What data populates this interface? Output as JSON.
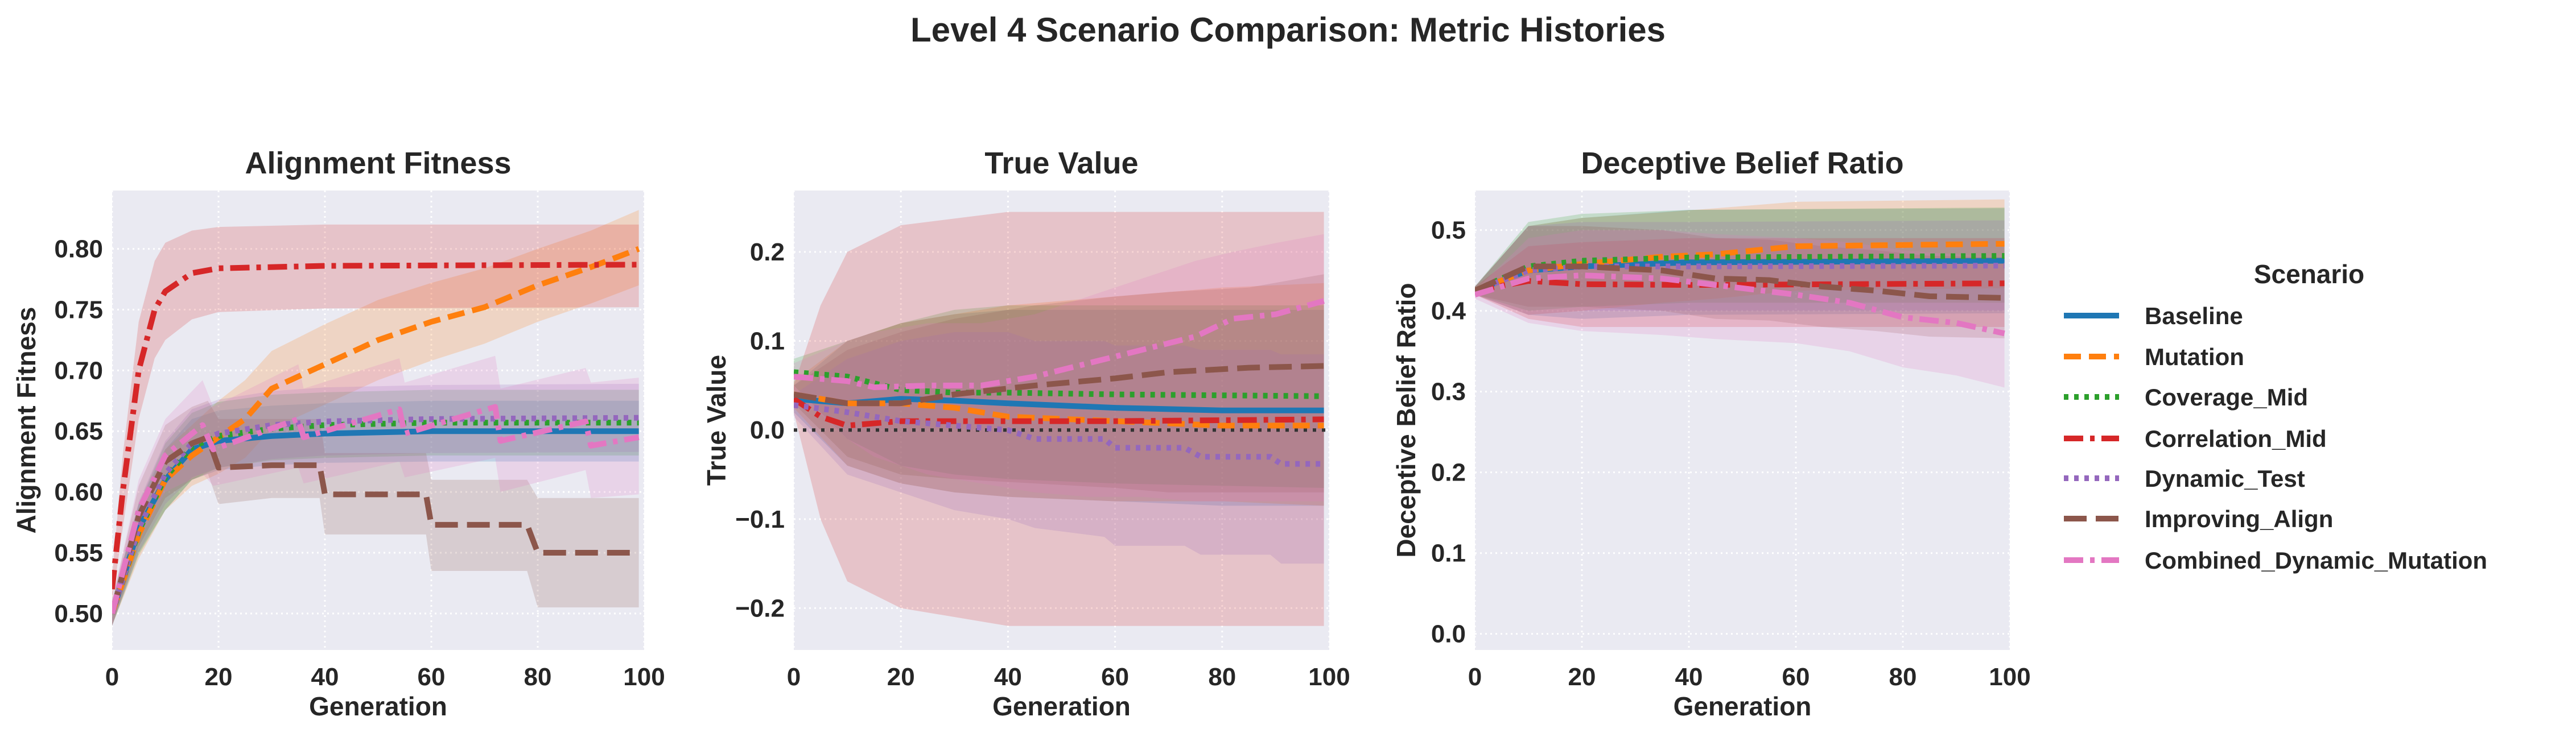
{
  "suptitle": "Level 4 Scenario Comparison: Metric Histories",
  "legend": {
    "title": "Scenario",
    "placement": "right, outside"
  },
  "colors": {
    "Baseline": "#1f77b4",
    "Mutation": "#ff7f0e",
    "Coverage_Mid": "#2ca02c",
    "Correlation_Mid": "#d62728",
    "Dynamic_Test": "#9467bd",
    "Improving_Align": "#8c564b",
    "Combined_Dynamic_Mutation": "#e377c2",
    "background": "#eaeaf2"
  },
  "chart_data": [
    {
      "type": "line",
      "title": "Alignment Fitness",
      "xlabel": "Generation",
      "ylabel": "Alignment Fitness",
      "xlim": [
        0,
        100
      ],
      "ylim": [
        0.47,
        0.848
      ],
      "xticks": [
        "0",
        "20",
        "40",
        "60",
        "80",
        "100"
      ],
      "yticks": [
        "0.50",
        "0.55",
        "0.60",
        "0.65",
        "0.70",
        "0.75",
        "0.80"
      ],
      "grid": true,
      "series": [
        {
          "name": "Baseline",
          "style": "solid",
          "x": [
            0,
            5,
            10,
            15,
            20,
            30,
            40,
            60,
            99
          ],
          "y": [
            0.5,
            0.57,
            0.61,
            0.635,
            0.642,
            0.646,
            0.648,
            0.65,
            0.65
          ],
          "lower": [
            0.49,
            0.55,
            0.585,
            0.61,
            0.618,
            0.622,
            0.624,
            0.625,
            0.625
          ],
          "upper": [
            0.51,
            0.59,
            0.635,
            0.66,
            0.667,
            0.671,
            0.673,
            0.675,
            0.675
          ]
        },
        {
          "name": "Mutation",
          "style": "dashed",
          "x": [
            0,
            5,
            10,
            15,
            20,
            25,
            30,
            40,
            50,
            60,
            70,
            80,
            90,
            99
          ],
          "y": [
            0.5,
            0.565,
            0.61,
            0.63,
            0.645,
            0.66,
            0.685,
            0.705,
            0.725,
            0.74,
            0.752,
            0.77,
            0.785,
            0.8
          ],
          "lower": [
            0.49,
            0.545,
            0.585,
            0.605,
            0.615,
            0.628,
            0.652,
            0.672,
            0.692,
            0.708,
            0.722,
            0.74,
            0.755,
            0.77
          ],
          "upper": [
            0.51,
            0.585,
            0.635,
            0.655,
            0.675,
            0.692,
            0.716,
            0.738,
            0.758,
            0.772,
            0.784,
            0.8,
            0.815,
            0.832
          ]
        },
        {
          "name": "Coverage_Mid",
          "style": "dotted",
          "x": [
            0,
            5,
            10,
            15,
            20,
            30,
            40,
            60,
            99
          ],
          "y": [
            0.5,
            0.568,
            0.612,
            0.637,
            0.646,
            0.652,
            0.655,
            0.657,
            0.657
          ],
          "lower": [
            0.49,
            0.548,
            0.585,
            0.61,
            0.62,
            0.626,
            0.628,
            0.63,
            0.63
          ],
          "upper": [
            0.51,
            0.59,
            0.64,
            0.665,
            0.674,
            0.68,
            0.682,
            0.684,
            0.684
          ]
        },
        {
          "name": "Correlation_Mid",
          "style": "dashdot",
          "x": [
            0,
            2,
            5,
            8,
            10,
            15,
            20,
            40,
            99
          ],
          "y": [
            0.52,
            0.6,
            0.7,
            0.75,
            0.765,
            0.78,
            0.784,
            0.786,
            0.787
          ],
          "lower": [
            0.51,
            0.57,
            0.66,
            0.71,
            0.725,
            0.742,
            0.748,
            0.751,
            0.752
          ],
          "upper": [
            0.53,
            0.63,
            0.74,
            0.79,
            0.805,
            0.815,
            0.818,
            0.82,
            0.82
          ]
        },
        {
          "name": "Dynamic_Test",
          "style": "dotted",
          "x": [
            0,
            5,
            10,
            15,
            20,
            30,
            40,
            60,
            99
          ],
          "y": [
            0.5,
            0.57,
            0.615,
            0.64,
            0.648,
            0.655,
            0.658,
            0.66,
            0.661
          ],
          "lower": [
            0.49,
            0.55,
            0.59,
            0.612,
            0.62,
            0.627,
            0.63,
            0.632,
            0.633
          ],
          "upper": [
            0.51,
            0.592,
            0.642,
            0.668,
            0.676,
            0.683,
            0.686,
            0.688,
            0.689
          ]
        },
        {
          "name": "Improving_Align",
          "style": "longdash",
          "x": [
            0,
            5,
            10,
            15,
            18,
            20,
            30,
            39,
            40,
            59,
            60,
            78,
            80,
            99
          ],
          "y": [
            0.5,
            0.58,
            0.625,
            0.64,
            0.645,
            0.62,
            0.622,
            0.622,
            0.598,
            0.598,
            0.573,
            0.573,
            0.55,
            0.55
          ],
          "lower": [
            0.49,
            0.555,
            0.595,
            0.61,
            0.615,
            0.59,
            0.595,
            0.595,
            0.565,
            0.565,
            0.535,
            0.535,
            0.505,
            0.505
          ],
          "upper": [
            0.51,
            0.605,
            0.655,
            0.67,
            0.675,
            0.66,
            0.66,
            0.66,
            0.632,
            0.632,
            0.61,
            0.61,
            0.595,
            0.595
          ]
        },
        {
          "name": "Combined_Dynamic_Mutation",
          "style": "dashdot",
          "x": [
            0,
            5,
            10,
            17,
            19,
            35,
            36,
            54,
            55,
            72,
            73,
            89,
            90,
            99
          ],
          "y": [
            0.5,
            0.585,
            0.63,
            0.655,
            0.635,
            0.66,
            0.645,
            0.668,
            0.648,
            0.67,
            0.642,
            0.658,
            0.638,
            0.645
          ],
          "lower": [
            0.49,
            0.56,
            0.6,
            0.615,
            0.605,
            0.62,
            0.607,
            0.625,
            0.612,
            0.628,
            0.6,
            0.618,
            0.595,
            0.598
          ],
          "upper": [
            0.51,
            0.61,
            0.66,
            0.692,
            0.67,
            0.705,
            0.685,
            0.71,
            0.69,
            0.712,
            0.685,
            0.702,
            0.69,
            0.694
          ]
        }
      ]
    },
    {
      "type": "line",
      "title": "True Value",
      "xlabel": "Generation",
      "ylabel": "True Value",
      "xlim": [
        0,
        100
      ],
      "ylim": [
        -0.247,
        0.269
      ],
      "xticks": [
        "0",
        "20",
        "40",
        "60",
        "80",
        "100"
      ],
      "yticks": [
        "−0.2",
        "−0.1",
        "0.0",
        "0.1",
        "0.2"
      ],
      "grid": true,
      "reference_line": 0.0,
      "series": [
        {
          "name": "Baseline",
          "style": "solid",
          "x": [
            0,
            10,
            20,
            30,
            40,
            60,
            80,
            99
          ],
          "y": [
            0.035,
            0.03,
            0.035,
            0.033,
            0.03,
            0.025,
            0.022,
            0.022
          ],
          "lower": [
            0.02,
            -0.04,
            -0.06,
            -0.07,
            -0.075,
            -0.08,
            -0.085,
            -0.085
          ],
          "upper": [
            0.05,
            0.1,
            0.12,
            0.13,
            0.135,
            0.135,
            0.135,
            0.135
          ]
        },
        {
          "name": "Mutation",
          "style": "dashed",
          "x": [
            0,
            10,
            20,
            30,
            40,
            60,
            80,
            99
          ],
          "y": [
            0.04,
            0.03,
            0.03,
            0.025,
            0.015,
            0.01,
            0.005,
            0.005
          ],
          "lower": [
            0.025,
            -0.04,
            -0.06,
            -0.07,
            -0.075,
            -0.08,
            -0.08,
            -0.085
          ],
          "upper": [
            0.055,
            0.1,
            0.12,
            0.13,
            0.14,
            0.15,
            0.16,
            0.165
          ]
        },
        {
          "name": "Coverage_Mid",
          "style": "dotted",
          "x": [
            0,
            10,
            20,
            30,
            40,
            60,
            99
          ],
          "y": [
            0.065,
            0.06,
            0.045,
            0.042,
            0.042,
            0.04,
            0.038
          ],
          "lower": [
            0.05,
            -0.01,
            -0.04,
            -0.05,
            -0.055,
            -0.06,
            -0.065
          ],
          "upper": [
            0.08,
            0.1,
            0.12,
            0.135,
            0.14,
            0.14,
            0.14
          ]
        },
        {
          "name": "Correlation_Mid",
          "style": "dashdot",
          "x": [
            0,
            5,
            10,
            20,
            40,
            60,
            99
          ],
          "y": [
            0.035,
            0.015,
            0.005,
            0.01,
            0.01,
            0.01,
            0.012
          ],
          "lower": [
            0.02,
            -0.1,
            -0.17,
            -0.2,
            -0.22,
            -0.22,
            -0.22
          ],
          "upper": [
            0.05,
            0.14,
            0.2,
            0.23,
            0.245,
            0.245,
            0.245
          ]
        },
        {
          "name": "Dynamic_Test",
          "style": "dotted",
          "x": [
            0,
            10,
            20,
            30,
            40,
            45,
            58,
            60,
            73,
            76,
            89,
            91,
            99
          ],
          "y": [
            0.028,
            0.02,
            0.01,
            0.005,
            0.0,
            -0.01,
            -0.01,
            -0.02,
            -0.02,
            -0.03,
            -0.03,
            -0.038,
            -0.038
          ],
          "lower": [
            0.015,
            -0.05,
            -0.07,
            -0.09,
            -0.1,
            -0.11,
            -0.12,
            -0.13,
            -0.13,
            -0.14,
            -0.14,
            -0.15,
            -0.15
          ],
          "upper": [
            0.04,
            0.08,
            0.1,
            0.11,
            0.11,
            0.1,
            0.1,
            0.095,
            0.095,
            0.09,
            0.09,
            0.085,
            0.085
          ]
        },
        {
          "name": "Improving_Align",
          "style": "longdash",
          "x": [
            0,
            10,
            20,
            30,
            45,
            60,
            70,
            85,
            99
          ],
          "y": [
            0.04,
            0.03,
            0.03,
            0.04,
            0.05,
            0.058,
            0.065,
            0.07,
            0.072
          ],
          "lower": [
            0.03,
            -0.03,
            -0.05,
            -0.055,
            -0.06,
            -0.065,
            -0.07,
            -0.07,
            -0.07
          ],
          "upper": [
            0.05,
            0.09,
            0.11,
            0.125,
            0.14,
            0.15,
            0.155,
            0.16,
            0.175
          ]
        },
        {
          "name": "Combined_Dynamic_Mutation",
          "style": "dashdot",
          "x": [
            0,
            10,
            15,
            25,
            35,
            45,
            55,
            65,
            75,
            82,
            90,
            99
          ],
          "y": [
            0.06,
            0.055,
            0.048,
            0.05,
            0.05,
            0.06,
            0.075,
            0.09,
            0.105,
            0.125,
            0.13,
            0.145
          ],
          "lower": [
            0.045,
            -0.01,
            -0.03,
            -0.05,
            -0.06,
            -0.07,
            -0.075,
            -0.075,
            -0.08,
            -0.08,
            -0.08,
            -0.08
          ],
          "upper": [
            0.075,
            0.1,
            0.11,
            0.12,
            0.12,
            0.13,
            0.15,
            0.17,
            0.19,
            0.2,
            0.21,
            0.22
          ]
        }
      ]
    },
    {
      "type": "line",
      "title": "Deceptive Belief Ratio",
      "xlabel": "Generation",
      "ylabel": "Deceptive Belief Ratio",
      "xlim": [
        0,
        100
      ],
      "ylim": [
        -0.02,
        0.549
      ],
      "xticks": [
        "0",
        "20",
        "40",
        "60",
        "80",
        "100"
      ],
      "yticks": [
        "0.0",
        "0.1",
        "0.2",
        "0.3",
        "0.4",
        "0.5"
      ],
      "grid": true,
      "series": [
        {
          "name": "Baseline",
          "style": "solid",
          "x": [
            0,
            10,
            20,
            40,
            99
          ],
          "y": [
            0.425,
            0.45,
            0.455,
            0.46,
            0.462
          ],
          "lower": [
            0.42,
            0.395,
            0.39,
            0.395,
            0.397
          ],
          "upper": [
            0.43,
            0.505,
            0.515,
            0.525,
            0.527
          ]
        },
        {
          "name": "Mutation",
          "style": "dashed",
          "x": [
            0,
            10,
            20,
            35,
            45,
            60,
            99
          ],
          "y": [
            0.425,
            0.45,
            0.458,
            0.467,
            0.47,
            0.48,
            0.483
          ],
          "lower": [
            0.42,
            0.395,
            0.4,
            0.41,
            0.415,
            0.425,
            0.428
          ],
          "upper": [
            0.43,
            0.505,
            0.515,
            0.522,
            0.527,
            0.535,
            0.538
          ]
        },
        {
          "name": "Coverage_Mid",
          "style": "dotted",
          "x": [
            0,
            10,
            20,
            40,
            99
          ],
          "y": [
            0.425,
            0.455,
            0.462,
            0.466,
            0.468
          ],
          "lower": [
            0.42,
            0.4,
            0.405,
            0.41,
            0.41
          ],
          "upper": [
            0.43,
            0.51,
            0.52,
            0.525,
            0.528
          ]
        },
        {
          "name": "Correlation_Mid",
          "style": "dashdot",
          "x": [
            0,
            10,
            20,
            40,
            99
          ],
          "y": [
            0.425,
            0.437,
            0.433,
            0.432,
            0.434
          ],
          "lower": [
            0.42,
            0.39,
            0.38,
            0.38,
            0.38
          ],
          "upper": [
            0.43,
            0.48,
            0.485,
            0.49,
            0.49
          ]
        },
        {
          "name": "Dynamic_Test",
          "style": "dotted",
          "x": [
            0,
            10,
            20,
            40,
            99
          ],
          "y": [
            0.425,
            0.45,
            0.455,
            0.455,
            0.456
          ],
          "lower": [
            0.42,
            0.395,
            0.4,
            0.4,
            0.4
          ],
          "upper": [
            0.43,
            0.505,
            0.51,
            0.51,
            0.512
          ]
        },
        {
          "name": "Improving_Align",
          "style": "longdash",
          "x": [
            0,
            10,
            20,
            35,
            45,
            55,
            65,
            75,
            85,
            99
          ],
          "y": [
            0.425,
            0.455,
            0.455,
            0.45,
            0.44,
            0.438,
            0.43,
            0.425,
            0.418,
            0.416
          ],
          "lower": [
            0.42,
            0.405,
            0.405,
            0.4,
            0.39,
            0.388,
            0.38,
            0.375,
            0.368,
            0.366
          ],
          "upper": [
            0.43,
            0.505,
            0.505,
            0.5,
            0.49,
            0.488,
            0.48,
            0.475,
            0.468,
            0.466
          ]
        },
        {
          "name": "Combined_Dynamic_Mutation",
          "style": "dashdot",
          "x": [
            0,
            10,
            20,
            35,
            45,
            60,
            70,
            80,
            90,
            99
          ],
          "y": [
            0.42,
            0.44,
            0.444,
            0.44,
            0.432,
            0.42,
            0.41,
            0.392,
            0.385,
            0.372
          ],
          "lower": [
            0.415,
            0.385,
            0.375,
            0.37,
            0.365,
            0.36,
            0.35,
            0.33,
            0.32,
            0.305
          ],
          "upper": [
            0.425,
            0.49,
            0.5,
            0.5,
            0.495,
            0.49,
            0.485,
            0.475,
            0.47,
            0.465
          ]
        }
      ]
    }
  ]
}
